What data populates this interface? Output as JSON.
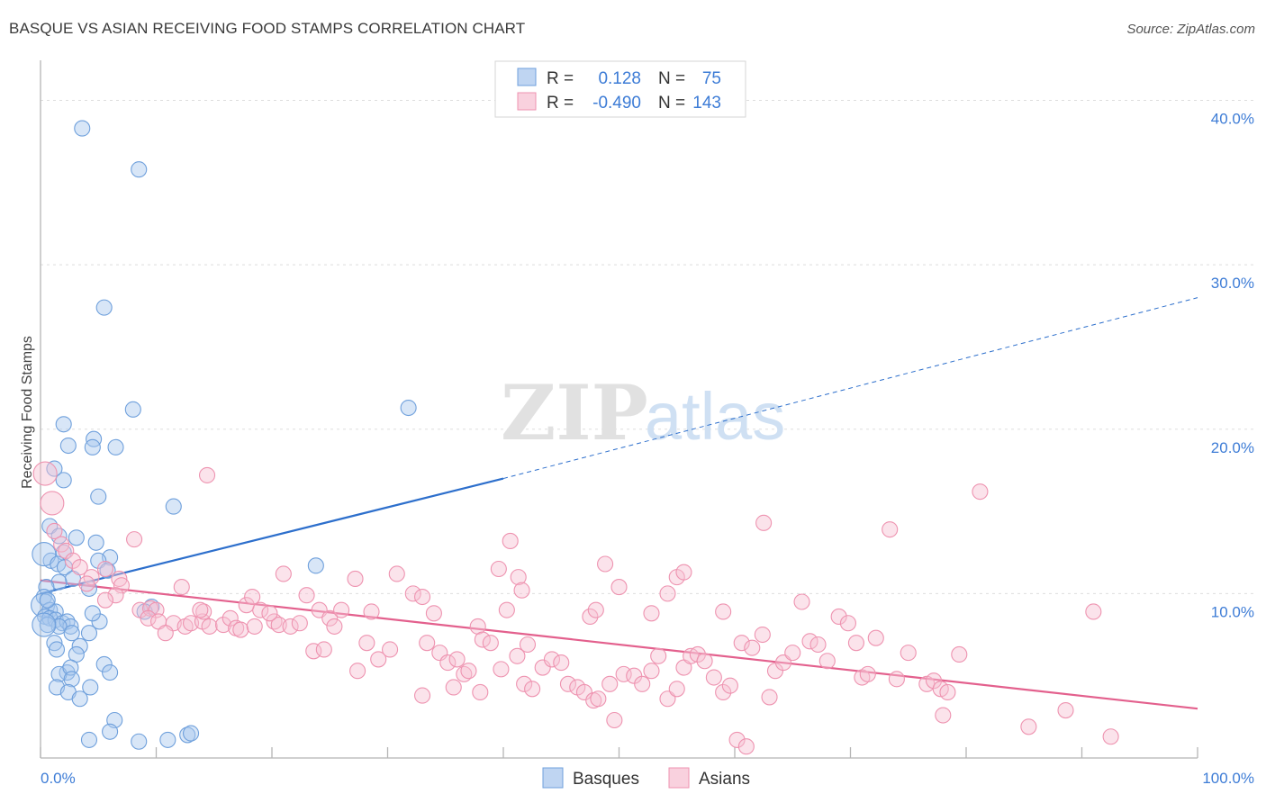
{
  "chart_data": {
    "type": "scatter",
    "title": "BASQUE VS ASIAN RECEIVING FOOD STAMPS CORRELATION CHART",
    "source": "Source: ZipAtlas.com",
    "ylabel": "Receiving Food Stamps",
    "xlabel": "",
    "xlim": [
      0,
      100
    ],
    "ylim": [
      0,
      42
    ],
    "x_tick_labels": [
      "0.0%",
      "100.0%"
    ],
    "y_ticks": [
      {
        "value": 10,
        "label": "10.0%"
      },
      {
        "value": 20,
        "label": "20.0%"
      },
      {
        "value": 30,
        "label": "30.0%"
      },
      {
        "value": 40,
        "label": "40.0%"
      }
    ],
    "watermark": "ZIPatlas",
    "legend_items": [
      "Basques",
      "Asians"
    ],
    "stats": [
      {
        "series": "Basques",
        "r_label": "R =",
        "r": "0.128",
        "n_label": "N =",
        "n": "75"
      },
      {
        "series": "Asians",
        "r_label": "R =",
        "r": "-0.490",
        "n_label": "N =",
        "n": "143"
      }
    ],
    "series": [
      {
        "name": "Basques",
        "color": "#6fa0dc",
        "fill": "#a9c7ee",
        "line_color": "#2d6fcc",
        "trend": {
          "x": [
            0,
            40
          ],
          "y": [
            10.0,
            17.0
          ],
          "dashed_x": [
            40,
            100
          ],
          "dashed_y": [
            17.0,
            28.0
          ]
        },
        "points": [
          [
            3.6,
            38.3
          ],
          [
            8.5,
            35.8
          ],
          [
            5.5,
            27.4
          ],
          [
            8.0,
            21.2
          ],
          [
            31.8,
            21.3
          ],
          [
            2.0,
            20.3
          ],
          [
            2.4,
            19.0
          ],
          [
            4.6,
            19.4
          ],
          [
            4.5,
            18.9
          ],
          [
            6.5,
            18.9
          ],
          [
            2.0,
            16.9
          ],
          [
            1.2,
            17.6
          ],
          [
            5.0,
            15.9
          ],
          [
            11.5,
            15.3
          ],
          [
            0.8,
            14.1
          ],
          [
            1.6,
            13.5
          ],
          [
            2.0,
            12.5
          ],
          [
            3.1,
            13.4
          ],
          [
            4.8,
            13.1
          ],
          [
            6.0,
            12.2
          ],
          [
            0.9,
            12.0
          ],
          [
            0.3,
            12.4
          ],
          [
            1.5,
            11.8
          ],
          [
            2.1,
            11.6
          ],
          [
            5.0,
            12.0
          ],
          [
            5.8,
            11.4
          ],
          [
            2.8,
            10.9
          ],
          [
            1.6,
            10.7
          ],
          [
            4.2,
            10.3
          ],
          [
            0.5,
            10.4
          ],
          [
            0.3,
            9.8
          ],
          [
            0.2,
            9.3
          ],
          [
            0.8,
            9.0
          ],
          [
            1.3,
            8.9
          ],
          [
            0.4,
            8.6
          ],
          [
            0.8,
            8.5
          ],
          [
            1.3,
            8.4
          ],
          [
            1.9,
            8.2
          ],
          [
            2.3,
            8.3
          ],
          [
            2.6,
            8.0
          ],
          [
            1.6,
            8.0
          ],
          [
            0.6,
            8.1
          ],
          [
            5.1,
            8.3
          ],
          [
            4.5,
            8.8
          ],
          [
            9.6,
            9.2
          ],
          [
            23.8,
            11.7
          ],
          [
            9.0,
            8.9
          ],
          [
            2.7,
            7.6
          ],
          [
            1.2,
            7.0
          ],
          [
            3.4,
            6.8
          ],
          [
            1.4,
            6.6
          ],
          [
            3.1,
            6.3
          ],
          [
            4.2,
            7.6
          ],
          [
            5.5,
            5.7
          ],
          [
            6.0,
            5.2
          ],
          [
            2.3,
            5.2
          ],
          [
            1.6,
            5.1
          ],
          [
            2.6,
            5.5
          ],
          [
            2.7,
            4.8
          ],
          [
            1.4,
            4.3
          ],
          [
            4.3,
            4.3
          ],
          [
            2.4,
            4.0
          ],
          [
            3.4,
            3.6
          ],
          [
            6.4,
            2.3
          ],
          [
            6.0,
            1.6
          ],
          [
            4.2,
            1.1
          ],
          [
            8.5,
            1.0
          ],
          [
            11.0,
            1.1
          ],
          [
            12.7,
            1.4
          ],
          [
            13.0,
            1.5
          ],
          [
            0.3,
            8.1
          ],
          [
            0.6,
            9.6
          ]
        ]
      },
      {
        "name": "Asians",
        "color": "#ee93b0",
        "fill": "#f7c1d3",
        "line_color": "#e3608d",
        "trend": {
          "x": [
            0,
            100
          ],
          "y": [
            10.8,
            3.0
          ]
        },
        "points": [
          [
            0.4,
            17.3
          ],
          [
            1.0,
            15.5
          ],
          [
            1.2,
            13.8
          ],
          [
            1.8,
            13.0
          ],
          [
            2.2,
            12.6
          ],
          [
            2.8,
            12.0
          ],
          [
            3.4,
            11.6
          ],
          [
            4.4,
            11.0
          ],
          [
            5.6,
            11.5
          ],
          [
            4.0,
            10.6
          ],
          [
            6.8,
            10.9
          ],
          [
            7.0,
            10.5
          ],
          [
            6.5,
            9.9
          ],
          [
            5.6,
            9.6
          ],
          [
            8.6,
            9.0
          ],
          [
            9.5,
            9.1
          ],
          [
            10.0,
            9.0
          ],
          [
            9.3,
            8.5
          ],
          [
            10.2,
            8.3
          ],
          [
            11.5,
            8.2
          ],
          [
            10.8,
            7.6
          ],
          [
            12.5,
            8.0
          ],
          [
            13.0,
            8.2
          ],
          [
            14.0,
            8.3
          ],
          [
            14.6,
            8.0
          ],
          [
            15.8,
            8.1
          ],
          [
            16.4,
            8.5
          ],
          [
            16.9,
            7.9
          ],
          [
            17.3,
            7.8
          ],
          [
            18.5,
            8.0
          ],
          [
            19.0,
            9.0
          ],
          [
            20.2,
            8.3
          ],
          [
            20.6,
            8.1
          ],
          [
            21.6,
            8.0
          ],
          [
            22.4,
            8.2
          ],
          [
            17.8,
            9.3
          ],
          [
            18.3,
            9.8
          ],
          [
            19.8,
            8.8
          ],
          [
            14.1,
            8.9
          ],
          [
            13.8,
            9.0
          ],
          [
            12.2,
            10.4
          ],
          [
            8.1,
            13.3
          ],
          [
            14.4,
            17.2
          ],
          [
            21.0,
            11.2
          ],
          [
            23.0,
            9.9
          ],
          [
            24.1,
            9.0
          ],
          [
            25.0,
            8.5
          ],
          [
            25.4,
            8.0
          ],
          [
            26.0,
            9.0
          ],
          [
            27.2,
            10.9
          ],
          [
            28.6,
            8.9
          ],
          [
            27.4,
            5.3
          ],
          [
            29.2,
            6.0
          ],
          [
            30.2,
            6.6
          ],
          [
            28.2,
            7.0
          ],
          [
            30.8,
            11.2
          ],
          [
            32.2,
            10.0
          ],
          [
            33.0,
            9.8
          ],
          [
            34.0,
            8.8
          ],
          [
            33.4,
            7.0
          ],
          [
            34.5,
            6.4
          ],
          [
            35.2,
            5.8
          ],
          [
            36.6,
            5.1
          ],
          [
            36.0,
            6.0
          ],
          [
            37.0,
            5.3
          ],
          [
            35.7,
            4.3
          ],
          [
            37.8,
            8.0
          ],
          [
            38.2,
            7.2
          ],
          [
            39.6,
            11.5
          ],
          [
            38.9,
            7.0
          ],
          [
            40.3,
            9.0
          ],
          [
            39.8,
            5.4
          ],
          [
            41.8,
            4.5
          ],
          [
            42.5,
            4.2
          ],
          [
            41.2,
            6.2
          ],
          [
            42.1,
            6.9
          ],
          [
            43.4,
            5.5
          ],
          [
            44.2,
            6.0
          ],
          [
            45.0,
            5.8
          ],
          [
            45.6,
            4.5
          ],
          [
            46.4,
            4.3
          ],
          [
            47.0,
            4.0
          ],
          [
            47.8,
            3.5
          ],
          [
            48.2,
            3.6
          ],
          [
            49.6,
            2.3
          ],
          [
            49.2,
            4.5
          ],
          [
            50.4,
            5.1
          ],
          [
            51.3,
            5.0
          ],
          [
            52.0,
            4.5
          ],
          [
            52.8,
            5.3
          ],
          [
            53.4,
            6.2
          ],
          [
            54.2,
            3.6
          ],
          [
            55.0,
            4.2
          ],
          [
            55.6,
            5.5
          ],
          [
            56.2,
            6.2
          ],
          [
            56.8,
            6.3
          ],
          [
            57.4,
            5.9
          ],
          [
            58.2,
            4.9
          ],
          [
            59.0,
            4.0
          ],
          [
            59.6,
            4.4
          ],
          [
            60.6,
            7.0
          ],
          [
            61.5,
            6.7
          ],
          [
            62.4,
            7.5
          ],
          [
            63.0,
            3.7
          ],
          [
            63.5,
            5.3
          ],
          [
            64.2,
            5.8
          ],
          [
            65.0,
            6.4
          ],
          [
            65.8,
            9.5
          ],
          [
            66.5,
            7.1
          ],
          [
            67.2,
            6.9
          ],
          [
            68.0,
            5.9
          ],
          [
            69.0,
            8.6
          ],
          [
            69.8,
            8.2
          ],
          [
            70.5,
            7.0
          ],
          [
            71.0,
            4.9
          ],
          [
            71.5,
            5.1
          ],
          [
            72.2,
            7.3
          ],
          [
            73.4,
            13.9
          ],
          [
            74.0,
            4.8
          ],
          [
            75.0,
            6.4
          ],
          [
            76.6,
            4.5
          ],
          [
            77.2,
            4.7
          ],
          [
            77.8,
            4.2
          ],
          [
            78.4,
            4.0
          ],
          [
            79.4,
            6.3
          ],
          [
            81.2,
            16.2
          ],
          [
            85.4,
            1.9
          ],
          [
            88.6,
            2.9
          ],
          [
            92.5,
            1.3
          ],
          [
            91.0,
            8.9
          ],
          [
            78.0,
            2.6
          ],
          [
            60.2,
            1.1
          ],
          [
            61.0,
            0.7
          ],
          [
            47.5,
            8.6
          ],
          [
            38.0,
            4.0
          ],
          [
            33.0,
            3.8
          ],
          [
            23.6,
            6.5
          ],
          [
            24.5,
            6.6
          ],
          [
            40.6,
            13.2
          ],
          [
            41.3,
            11.0
          ],
          [
            41.6,
            10.2
          ],
          [
            48.0,
            9.0
          ],
          [
            48.8,
            11.8
          ],
          [
            50.0,
            10.4
          ],
          [
            52.8,
            8.8
          ],
          [
            54.2,
            10.0
          ],
          [
            55.0,
            11.0
          ],
          [
            55.6,
            11.3
          ],
          [
            59.0,
            8.9
          ],
          [
            62.5,
            14.3
          ]
        ]
      }
    ]
  }
}
